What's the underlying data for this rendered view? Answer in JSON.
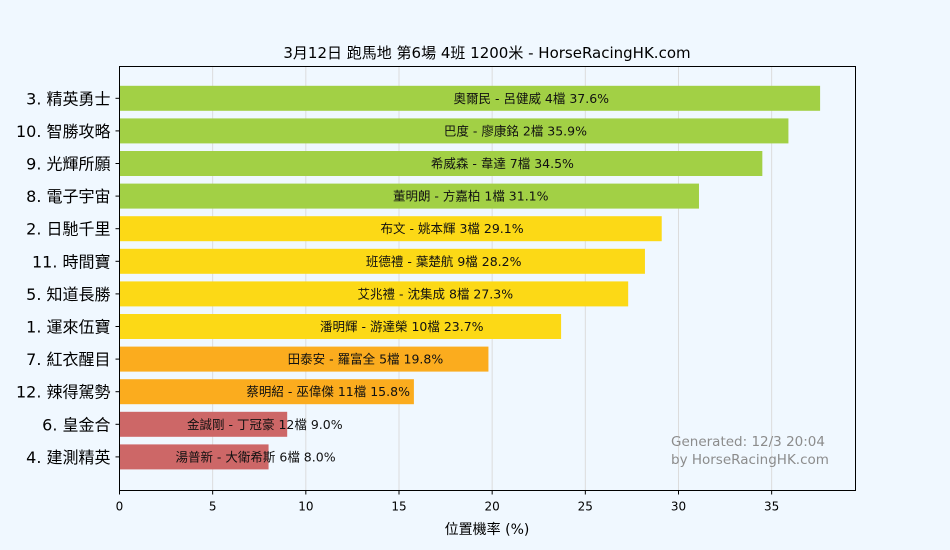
{
  "chart_data": {
    "type": "bar",
    "orientation": "horizontal",
    "title": "3月12日  跑馬地  第6場  4班  1200米 - HorseRacingHK.com",
    "xlabel": "位置機率 (%)",
    "ylabel": "",
    "xlim": [
      0,
      39.5
    ],
    "xticks": [
      0,
      5,
      10,
      15,
      20,
      25,
      30,
      35
    ],
    "grid": "vertical",
    "categories": [
      "3. 精英勇士",
      "10. 智勝攻略",
      "9. 光輝所願",
      "8. 電子宇宙",
      "2. 日馳千里",
      "11. 時間寶",
      "5. 知道長勝",
      "1. 運來伍寶",
      "7. 紅衣醒目",
      "12. 辣得駕勢",
      "6. 皇金合",
      "4. 建測精英"
    ],
    "values": [
      37.6,
      35.9,
      34.5,
      31.1,
      29.1,
      28.2,
      27.3,
      23.7,
      19.8,
      15.8,
      9.0,
      8.0
    ],
    "bar_labels": [
      "奧爾民 - 呂健威 4檔  37.6%",
      "巴度 - 廖康銘 2檔  35.9%",
      "希威森 - 韋達 7檔  34.5%",
      "董明朗 - 方嘉柏 1檔  31.1%",
      "布文 - 姚本輝 3檔  29.1%",
      "班德禮 - 葉楚航 9檔  28.2%",
      "艾兆禮 - 沈集成 8檔  27.3%",
      "潘明輝 - 游達榮 10檔  23.7%",
      "田泰安 - 羅富全 5檔  19.8%",
      "蔡明紹 - 巫偉傑 11檔  15.8%",
      "金誠剛 - 丁冠豪 12檔  9.0%",
      "湯普新 - 大衛希斯 6檔  8.0%"
    ],
    "colors": [
      "#a2d045",
      "#a2d045",
      "#a2d045",
      "#a2d045",
      "#fcd916",
      "#fcd916",
      "#fcd916",
      "#fcd916",
      "#fbac1e",
      "#fbac1e",
      "#cd6767",
      "#cd6767"
    ],
    "annotation": [
      "Generated: 12/3 20:04",
      "by HorseRacingHK.com"
    ]
  }
}
